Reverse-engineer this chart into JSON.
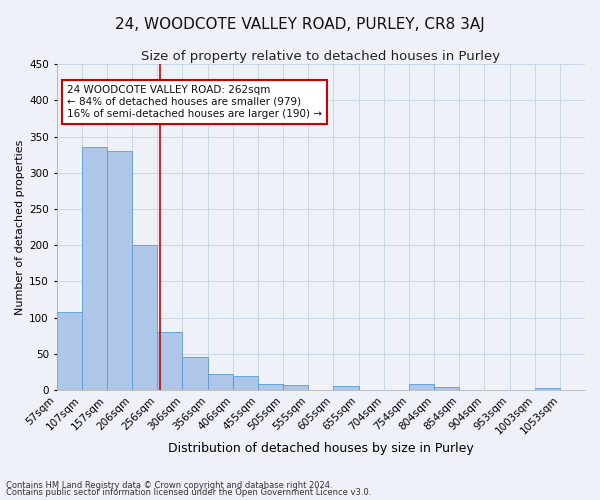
{
  "title": "24, WOODCOTE VALLEY ROAD, PURLEY, CR8 3AJ",
  "subtitle": "Size of property relative to detached houses in Purley",
  "xlabel": "Distribution of detached houses by size in Purley",
  "ylabel": "Number of detached properties",
  "footnote1": "Contains HM Land Registry data © Crown copyright and database right 2024.",
  "footnote2": "Contains public sector information licensed under the Open Government Licence v3.0.",
  "annotation_line1": "24 WOODCOTE VALLEY ROAD: 262sqm",
  "annotation_line2": "← 84% of detached houses are smaller (979)",
  "annotation_line3": "16% of semi-detached houses are larger (190) →",
  "bar_color": "#aec6e8",
  "bar_edge_color": "#5b9bd5",
  "grid_color": "#c8d8e8",
  "ref_line_color": "#cc0000",
  "annotation_box_edge": "#cc0000",
  "bins": [
    "57sqm",
    "107sqm",
    "157sqm",
    "206sqm",
    "256sqm",
    "306sqm",
    "356sqm",
    "406sqm",
    "455sqm",
    "505sqm",
    "555sqm",
    "605sqm",
    "655sqm",
    "704sqm",
    "754sqm",
    "804sqm",
    "854sqm",
    "904sqm",
    "953sqm",
    "1003sqm",
    "1053sqm"
  ],
  "values": [
    108,
    335,
    330,
    200,
    80,
    46,
    22,
    20,
    9,
    7,
    0,
    6,
    0,
    0,
    8,
    5,
    0,
    0,
    0,
    3,
    0
  ],
  "ylim": [
    0,
    450
  ],
  "yticks": [
    0,
    50,
    100,
    150,
    200,
    250,
    300,
    350,
    400,
    450
  ],
  "background_color": "#eef2f8",
  "plot_bg_color": "#eef2f8",
  "title_fontsize": 11,
  "subtitle_fontsize": 9.5,
  "ylabel_fontsize": 8,
  "xlabel_fontsize": 9,
  "tick_fontsize": 7.5,
  "footnote_fontsize": 6,
  "annotation_fontsize": 7.5
}
